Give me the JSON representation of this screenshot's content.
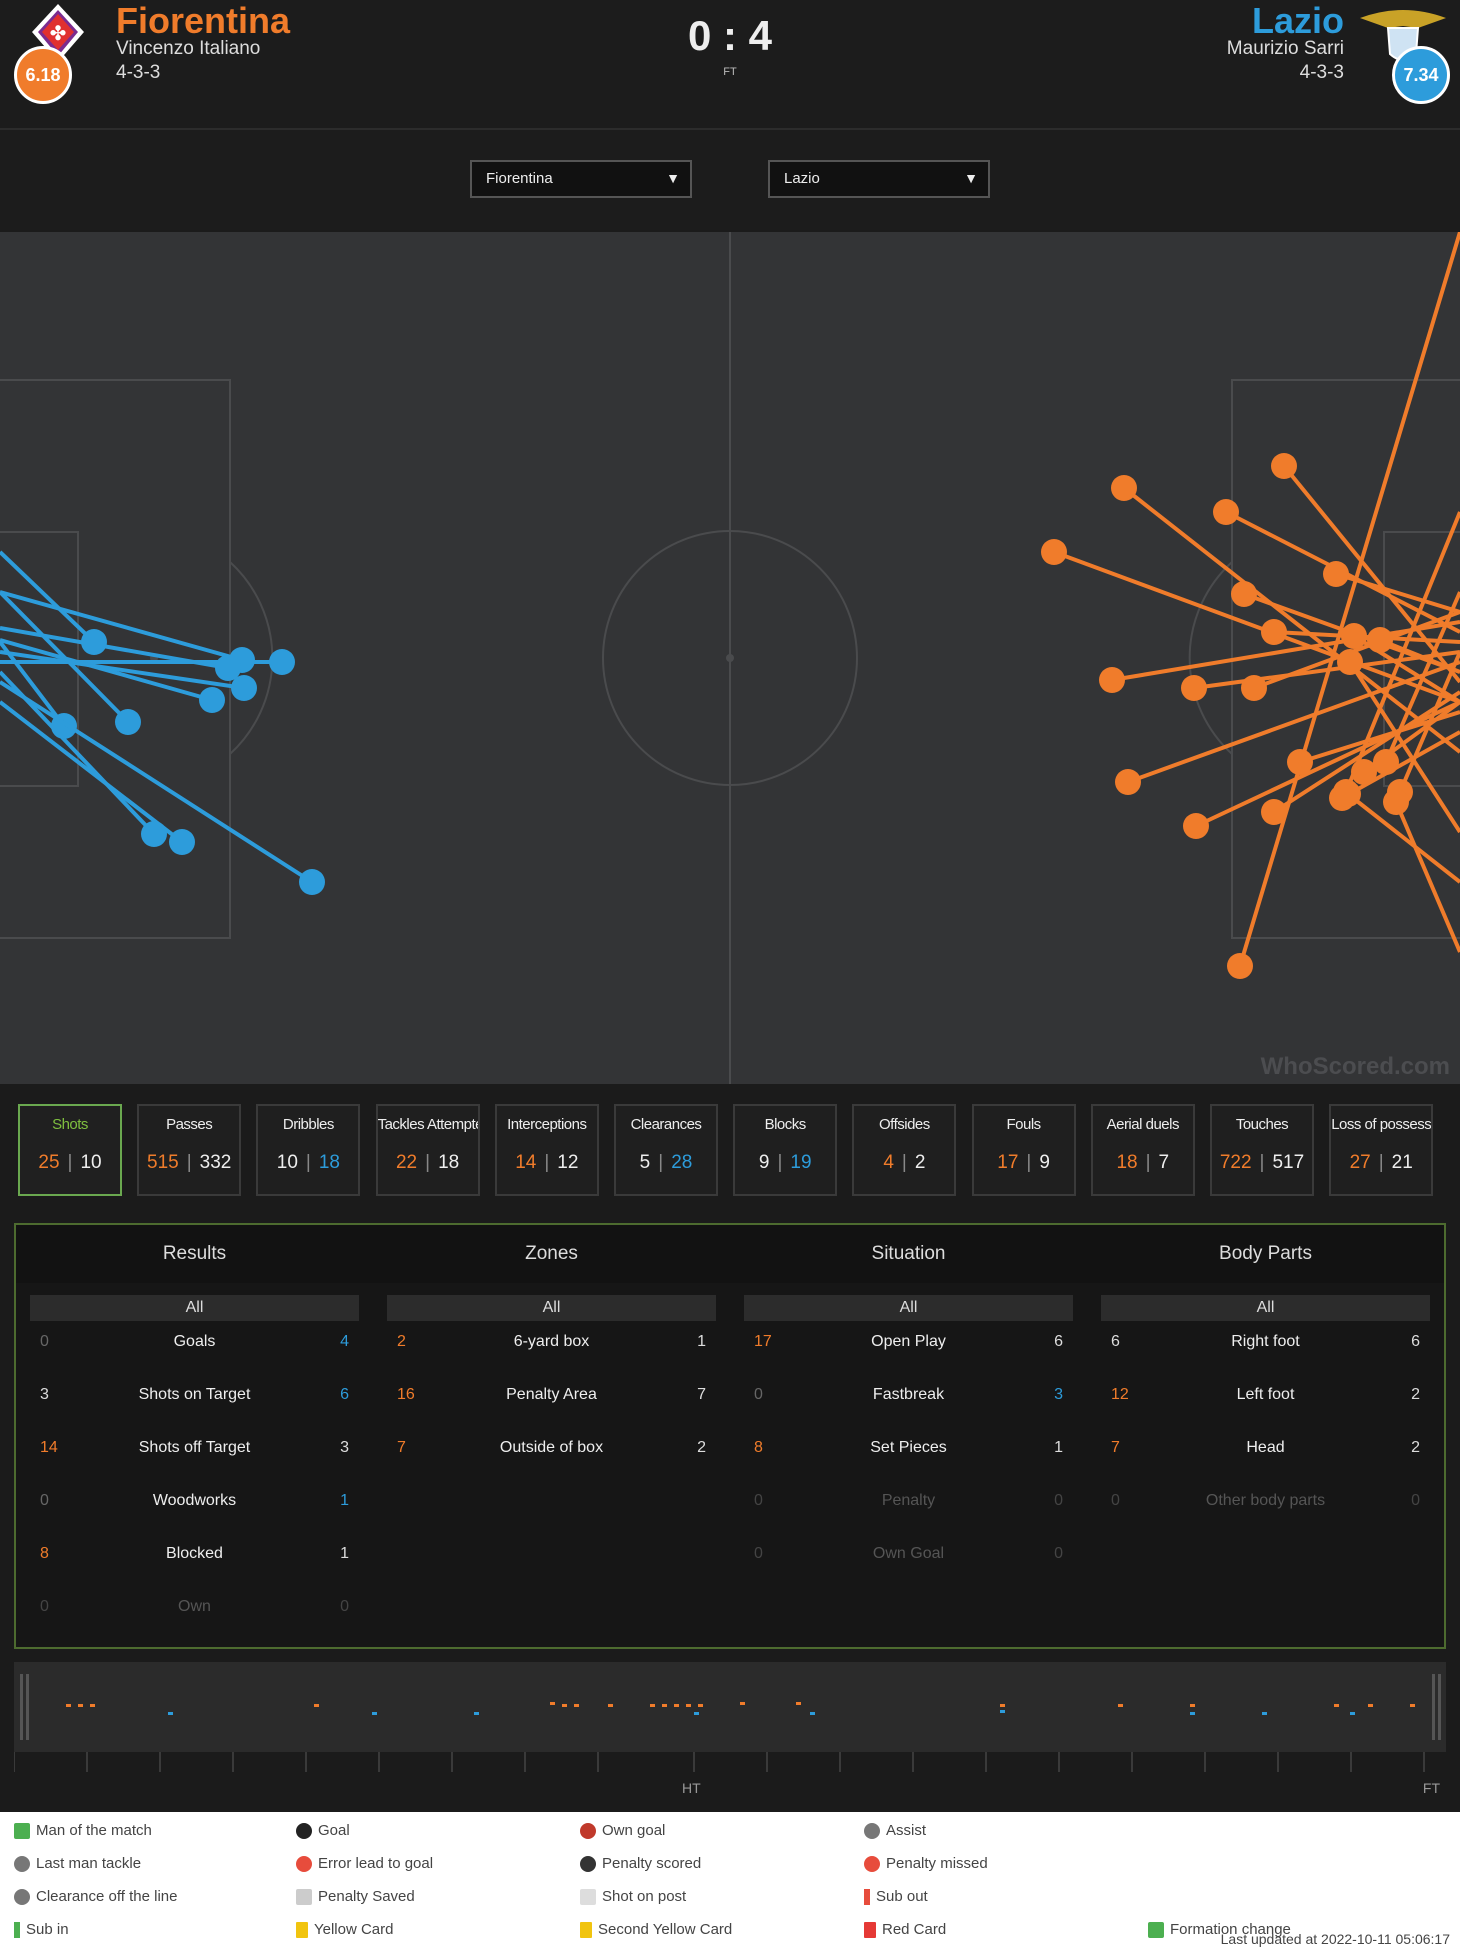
{
  "header": {
    "home": {
      "name": "Fiorentina",
      "coach": "Vincenzo Italiano",
      "formation": "4-3-3",
      "rating": "6.18",
      "color": "#f07c2b"
    },
    "away": {
      "name": "Lazio",
      "coach": "Maurizio Sarri",
      "formation": "4-3-3",
      "rating": "7.34",
      "color": "#2d9cdb"
    },
    "score": "0 : 4",
    "status": "FT"
  },
  "selectors": {
    "home": "Fiorentina",
    "away": "Lazio"
  },
  "watermark": "WhoScored.com",
  "colors": {
    "home": "#f07c2b",
    "away": "#2d9cdb"
  },
  "stat_tabs": [
    {
      "label": "Shots",
      "home": "25",
      "away": "10",
      "active": true
    },
    {
      "label": "Passes",
      "home": "515",
      "away": "332"
    },
    {
      "label": "Dribbles",
      "home": "10",
      "away": "18"
    },
    {
      "label": "Tackles Attempted",
      "home": "22",
      "away": "18"
    },
    {
      "label": "Interceptions",
      "home": "14",
      "away": "12"
    },
    {
      "label": "Clearances",
      "home": "5",
      "away": "28"
    },
    {
      "label": "Blocks",
      "home": "9",
      "away": "19"
    },
    {
      "label": "Offsides",
      "home": "4",
      "away": "2"
    },
    {
      "label": "Fouls",
      "home": "17",
      "away": "9"
    },
    {
      "label": "Aerial duels",
      "home": "18",
      "away": "7"
    },
    {
      "label": "Touches",
      "home": "722",
      "away": "517"
    },
    {
      "label": "Loss of possession",
      "home": "27",
      "away": "21"
    }
  ],
  "breakdown": {
    "columns": [
      {
        "title": "Results",
        "filter": "All",
        "rows": [
          {
            "label": "Goals",
            "home": "0",
            "away": "4"
          },
          {
            "label": "Shots on Target",
            "home": "3",
            "away": "6"
          },
          {
            "label": "Shots off Target",
            "home": "14",
            "away": "3"
          },
          {
            "label": "Woodworks",
            "home": "0",
            "away": "1"
          },
          {
            "label": "Blocked",
            "home": "8",
            "away": "1"
          },
          {
            "label": "Own",
            "home": "0",
            "away": "0"
          }
        ]
      },
      {
        "title": "Zones",
        "filter": "All",
        "rows": [
          {
            "label": "6-yard box",
            "home": "2",
            "away": "1"
          },
          {
            "label": "Penalty Area",
            "home": "16",
            "away": "7"
          },
          {
            "label": "Outside of box",
            "home": "7",
            "away": "2"
          }
        ]
      },
      {
        "title": "Situation",
        "filter": "All",
        "rows": [
          {
            "label": "Open Play",
            "home": "17",
            "away": "6"
          },
          {
            "label": "Fastbreak",
            "home": "0",
            "away": "3"
          },
          {
            "label": "Set Pieces",
            "home": "8",
            "away": "1"
          },
          {
            "label": "Penalty",
            "home": "0",
            "away": "0"
          },
          {
            "label": "Own Goal",
            "home": "0",
            "away": "0"
          }
        ]
      },
      {
        "title": "Body Parts",
        "filter": "All",
        "rows": [
          {
            "label": "Right foot",
            "home": "6",
            "away": "6"
          },
          {
            "label": "Left foot",
            "home": "12",
            "away": "2"
          },
          {
            "label": "Head",
            "home": "7",
            "away": "2"
          },
          {
            "label": "Other body parts",
            "home": "0",
            "away": "0"
          }
        ]
      }
    ]
  },
  "timeline": {
    "ht_label": "HT",
    "ft_label": "FT"
  },
  "legend": [
    {
      "icon": "star-icon",
      "label": "Man of the match"
    },
    {
      "icon": "goal-icon",
      "label": "Goal"
    },
    {
      "icon": "own-goal-icon",
      "label": "Own goal"
    },
    {
      "icon": "assist-icon",
      "label": "Assist"
    },
    {
      "icon": "last-man-tackle-icon",
      "label": "Last man tackle"
    },
    {
      "icon": "error-icon",
      "label": "Error lead to goal"
    },
    {
      "icon": "penalty-scored-icon",
      "label": "Penalty scored"
    },
    {
      "icon": "penalty-missed-icon",
      "label": "Penalty missed"
    },
    {
      "icon": "clearance-icon",
      "label": "Clearance off the line"
    },
    {
      "icon": "penalty-saved-icon",
      "label": "Penalty Saved"
    },
    {
      "icon": "shot-on-post-icon",
      "label": "Shot on post"
    },
    {
      "icon": "sub-out-icon",
      "label": "Sub out"
    },
    {
      "icon": "sub-in-icon",
      "label": "Sub in"
    },
    {
      "icon": "yellow-card-icon",
      "label": "Yellow Card"
    },
    {
      "icon": "second-yellow-icon",
      "label": "Second Yellow Card"
    },
    {
      "icon": "red-card-icon",
      "label": "Red Card"
    },
    {
      "icon": "formation-change-icon",
      "label": "Formation change"
    }
  ],
  "updated": "Last updated at 2022-10-11 05:06:17"
}
